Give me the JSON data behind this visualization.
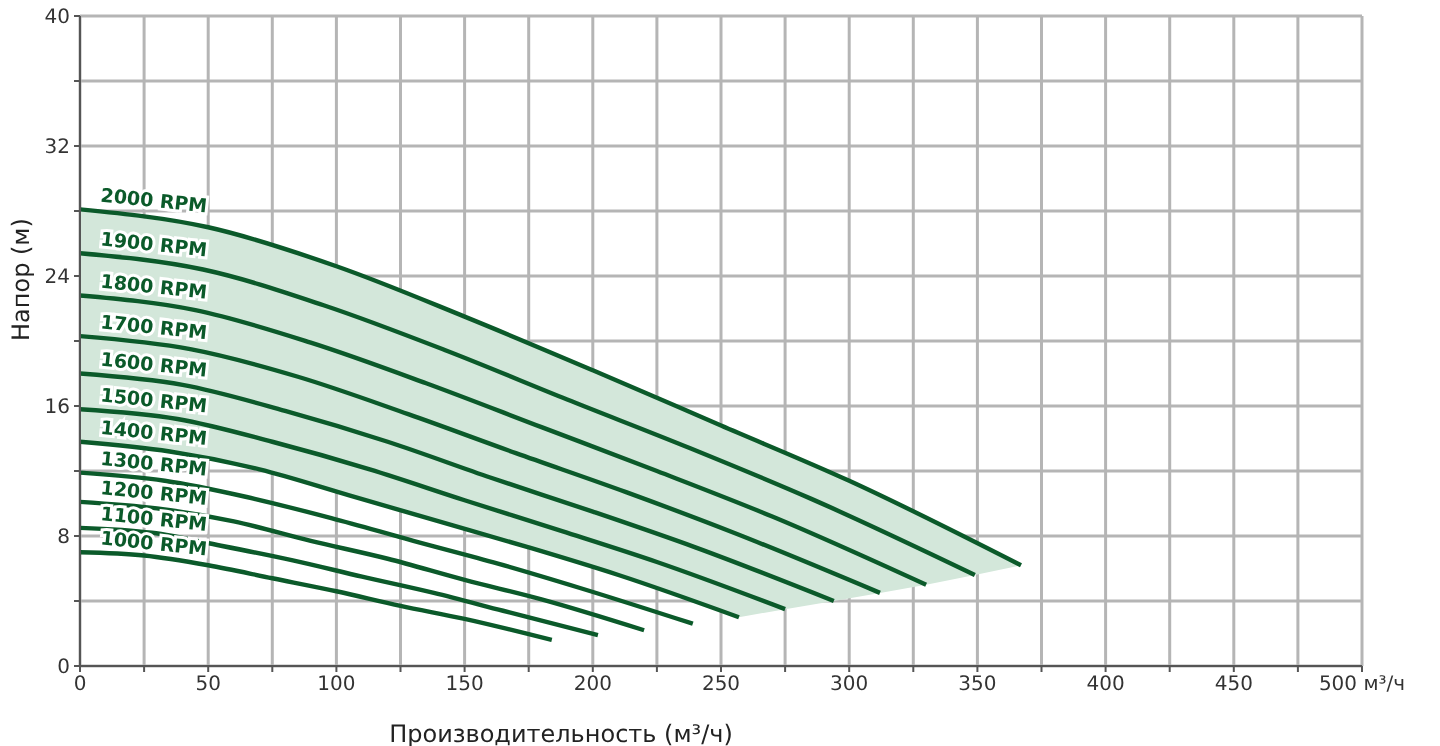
{
  "chart_data": {
    "type": "line",
    "xlabel": "Производительность (м³/ч)",
    "ylabel": "Напор (м)",
    "xlim": [
      0,
      500
    ],
    "ylim": [
      0,
      40
    ],
    "xticks": [
      0,
      {
        "value": 25,
        "label": null
      },
      50,
      {
        "value": 75,
        "label": null
      },
      100,
      {
        "value": 125,
        "label": null
      },
      150,
      {
        "value": 175,
        "label": null
      },
      200,
      {
        "value": 225,
        "label": null
      },
      250,
      {
        "value": 275,
        "label": null
      },
      300,
      {
        "value": 325,
        "label": null
      },
      350,
      {
        "value": 375,
        "label": null
      },
      400,
      {
        "value": 425,
        "label": null
      },
      450,
      {
        "value": 475,
        "label": null
      },
      {
        "value": 500,
        "label": "500 м³/ч"
      }
    ],
    "yticks": [
      0,
      {
        "value": 4,
        "label": null
      },
      8,
      {
        "value": 12,
        "label": null
      },
      16,
      {
        "value": 20,
        "label": null
      },
      24,
      {
        "value": 28,
        "label": null
      },
      32,
      {
        "value": 36,
        "label": null
      },
      40
    ],
    "grid": true,
    "legend": false,
    "series": [
      {
        "name": "2000 RPM",
        "color": "#0b5a2a",
        "x": [
          0,
          50,
          100,
          150,
          200,
          250,
          300,
          367
        ],
        "values": [
          28.1,
          27,
          24.6,
          21.5,
          18.2,
          14.8,
          11.4,
          6.2
        ]
      },
      {
        "name": "1900 RPM",
        "color": "#0b5a2a",
        "x": [
          0,
          48,
          95,
          143,
          190,
          238,
          285,
          349
        ],
        "values": [
          25.4,
          24.4,
          22.2,
          19.4,
          16.4,
          13.4,
          10.3,
          5.6
        ]
      },
      {
        "name": "1800 RPM",
        "color": "#0b5a2a",
        "x": [
          0,
          45,
          90,
          135,
          180,
          225,
          270,
          330
        ],
        "values": [
          22.8,
          21.9,
          19.9,
          17.4,
          14.7,
          12.0,
          9.2,
          5.0
        ]
      },
      {
        "name": "1700 RPM",
        "color": "#0b5a2a",
        "x": [
          0,
          43,
          85,
          128,
          170,
          213,
          255,
          312
        ],
        "values": [
          20.3,
          19.5,
          17.8,
          15.5,
          13.1,
          10.7,
          8.2,
          4.5
        ]
      },
      {
        "name": "1600 RPM",
        "color": "#0b5a2a",
        "x": [
          0,
          40,
          80,
          120,
          160,
          200,
          240,
          294
        ],
        "values": [
          18.0,
          17.3,
          15.7,
          13.8,
          11.6,
          9.5,
          7.3,
          4.0
        ]
      },
      {
        "name": "1500 RPM",
        "color": "#0b5a2a",
        "x": [
          0,
          38,
          75,
          113,
          150,
          188,
          225,
          275
        ],
        "values": [
          15.8,
          15.2,
          13.8,
          12.1,
          10.2,
          8.3,
          6.4,
          3.5
        ]
      },
      {
        "name": "1400 RPM",
        "color": "#0b5a2a",
        "x": [
          0,
          35,
          70,
          105,
          140,
          175,
          210,
          257
        ],
        "values": [
          13.8,
          13.2,
          12.1,
          10.5,
          8.9,
          7.3,
          5.6,
          3.0
        ]
      },
      {
        "name": "1300 RPM",
        "color": "#0b5a2a",
        "x": [
          0,
          33,
          65,
          98,
          130,
          163,
          195,
          239
        ],
        "values": [
          11.9,
          11.4,
          10.4,
          9.1,
          7.7,
          6.3,
          4.8,
          2.6
        ]
      },
      {
        "name": "1200 RPM",
        "color": "#0b5a2a",
        "x": [
          0,
          30,
          60,
          90,
          120,
          150,
          180,
          220
        ],
        "values": [
          10.1,
          9.7,
          8.9,
          7.7,
          6.6,
          5.3,
          4.1,
          2.2
        ]
      },
      {
        "name": "1100 RPM",
        "color": "#0b5a2a",
        "x": [
          0,
          28,
          55,
          83,
          110,
          138,
          165,
          202
        ],
        "values": [
          8.5,
          8.2,
          7.4,
          6.5,
          5.5,
          4.5,
          3.4,
          1.9
        ]
      },
      {
        "name": "1000 RPM",
        "color": "#0b5a2a",
        "x": [
          0,
          25,
          50,
          75,
          100,
          125,
          150,
          184
        ],
        "values": [
          7.0,
          6.8,
          6.2,
          5.4,
          4.6,
          3.7,
          2.9,
          1.6
        ]
      }
    ]
  }
}
